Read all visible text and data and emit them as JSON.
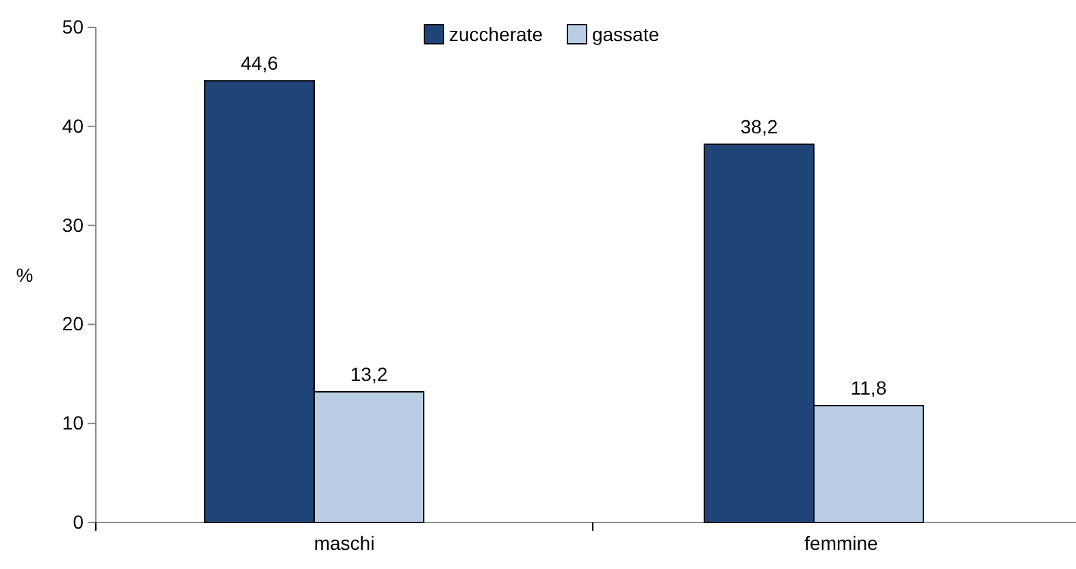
{
  "chart_data": {
    "type": "bar",
    "ylabel": "%",
    "categories": [
      "maschi",
      "femmine"
    ],
    "series": [
      {
        "name": "zuccherate",
        "color": "#1f4478",
        "values": [
          44.6,
          38.2
        ],
        "value_labels": [
          "44,6",
          "38,2"
        ]
      },
      {
        "name": "gassate",
        "color": "#b9cde5",
        "values": [
          13.2,
          11.8
        ],
        "value_labels": [
          "13,2",
          "11,8"
        ]
      }
    ],
    "ylim": [
      0,
      50
    ],
    "yticks": [
      0,
      10,
      20,
      30,
      40,
      50
    ],
    "grid": false,
    "legend": "top"
  }
}
